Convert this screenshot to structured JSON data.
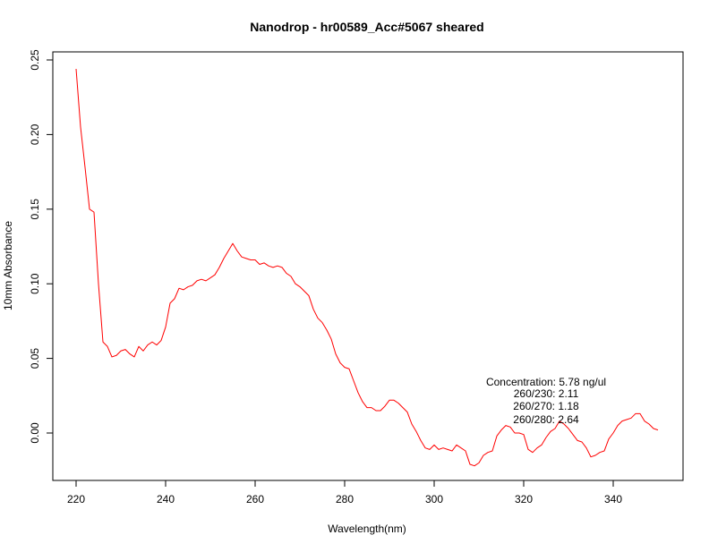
{
  "chart_data": {
    "type": "line",
    "title": "Nanodrop - hr00589_Acc#5067 sheared",
    "xlabel": "Wavelength(nm)",
    "ylabel": "10mm Absorbance",
    "xlim": [
      220,
      350
    ],
    "ylim": [
      -0.03,
      0.255
    ],
    "xticks": [
      220,
      240,
      260,
      280,
      300,
      320,
      340
    ],
    "xtick_labels": [
      "220",
      "240",
      "260",
      "280",
      "300",
      "320",
      "340"
    ],
    "yticks": [
      0.0,
      0.05,
      0.1,
      0.15,
      0.2,
      0.25
    ],
    "ytick_labels": [
      "0.00",
      "0.05",
      "0.10",
      "0.15",
      "0.20",
      "0.25"
    ],
    "grid": false,
    "legend": "none",
    "line_color": "#ff0000",
    "series": [
      {
        "x": [
          220,
          221,
          222,
          223,
          224,
          225,
          226,
          227,
          228,
          229,
          230,
          231,
          232,
          233,
          234,
          235,
          236,
          237,
          238,
          239,
          240,
          241,
          242,
          243,
          244,
          245,
          246,
          247,
          248,
          249,
          250,
          251,
          252,
          253,
          254,
          255,
          256,
          257,
          258,
          259,
          260,
          261,
          262,
          263,
          264,
          265,
          266,
          267,
          268,
          269,
          270,
          271,
          272,
          273,
          274,
          275,
          276,
          277,
          278,
          279,
          280,
          281,
          282,
          283,
          284,
          285,
          286,
          287,
          288,
          289,
          290,
          291,
          292,
          293,
          294,
          295,
          296,
          297,
          298,
          299,
          300,
          301,
          302,
          303,
          304,
          305,
          306,
          307,
          308,
          309,
          310,
          311,
          312,
          313,
          314,
          315,
          316,
          317,
          318,
          319,
          320,
          321,
          322,
          323,
          324,
          325,
          326,
          327,
          328,
          329,
          330,
          331,
          332,
          333,
          334,
          335,
          336,
          337,
          338,
          339,
          340,
          341,
          342,
          343,
          344,
          345,
          346,
          347,
          348,
          349,
          350
        ],
        "y": [
          0.244,
          0.205,
          0.178,
          0.15,
          0.148,
          0.1,
          0.061,
          0.058,
          0.051,
          0.052,
          0.055,
          0.056,
          0.053,
          0.051,
          0.058,
          0.055,
          0.059,
          0.061,
          0.059,
          0.062,
          0.071,
          0.087,
          0.09,
          0.097,
          0.096,
          0.098,
          0.099,
          0.102,
          0.103,
          0.102,
          0.104,
          0.106,
          0.111,
          0.117,
          0.122,
          0.127,
          0.122,
          0.118,
          0.117,
          0.116,
          0.116,
          0.113,
          0.114,
          0.112,
          0.111,
          0.112,
          0.111,
          0.107,
          0.105,
          0.1,
          0.098,
          0.095,
          0.092,
          0.083,
          0.077,
          0.074,
          0.069,
          0.063,
          0.053,
          0.047,
          0.044,
          0.043,
          0.035,
          0.027,
          0.021,
          0.017,
          0.017,
          0.015,
          0.015,
          0.018,
          0.022,
          0.022,
          0.02,
          0.017,
          0.014,
          0.006,
          0.001,
          -0.005,
          -0.01,
          -0.011,
          -0.008,
          -0.011,
          -0.01,
          -0.011,
          -0.012,
          -0.008,
          -0.01,
          -0.012,
          -0.021,
          -0.022,
          -0.02,
          -0.015,
          -0.013,
          -0.012,
          -0.002,
          0.002,
          0.005,
          0.004,
          0.0,
          0.0,
          -0.001,
          -0.011,
          -0.013,
          -0.01,
          -0.008,
          -0.003,
          0.001,
          0.003,
          0.008,
          0.006,
          0.003,
          -0.001,
          -0.005,
          -0.006,
          -0.01,
          -0.016,
          -0.015,
          -0.013,
          -0.012,
          -0.004,
          0.0,
          0.005,
          0.008,
          0.009,
          0.01,
          0.013,
          0.013,
          0.008,
          0.006,
          0.003,
          0.002
        ]
      }
    ],
    "annotations": [
      "Concentration: 5.78 ng/ul",
      "260/230: 2.11",
      "260/270: 1.18",
      "260/280: 2.64"
    ]
  }
}
